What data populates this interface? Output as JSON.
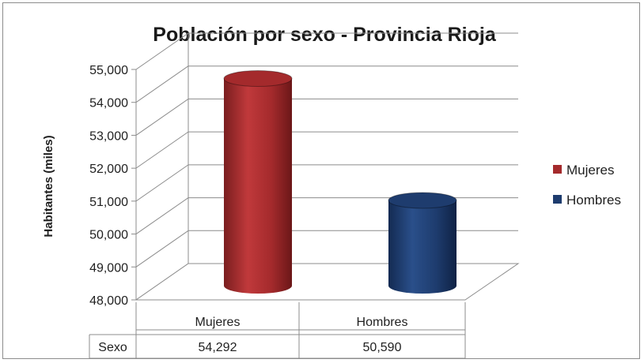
{
  "chart_data": {
    "type": "bar",
    "title": "Población por sexo - Provincia Rioja",
    "ylabel": "Habitantes (miles)",
    "xlabel": "",
    "ylim": [
      48000,
      55000
    ],
    "yticks": [
      "48,000",
      "49,000",
      "50,000",
      "51,000",
      "52,000",
      "53,000",
      "54,000",
      "55,000"
    ],
    "y_step": 1000,
    "grid": true,
    "bar_shape": "cylinder-3d",
    "legend_position": "right",
    "categories": [
      "Mujeres",
      "Hombres"
    ],
    "values": [
      54292,
      50590
    ],
    "value_labels": [
      "54,292",
      "50,590"
    ],
    "colors": [
      "#A42A2C",
      "#1E3C6E"
    ],
    "legend": [
      {
        "label": "Mujeres",
        "color": "#A42A2C"
      },
      {
        "label": "Hombres",
        "color": "#1E3C6E"
      }
    ],
    "data_table": {
      "row_header": "Sexo",
      "columns": [
        "Mujeres",
        "Hombres"
      ],
      "values": [
        "54,292",
        "50,590"
      ]
    }
  }
}
